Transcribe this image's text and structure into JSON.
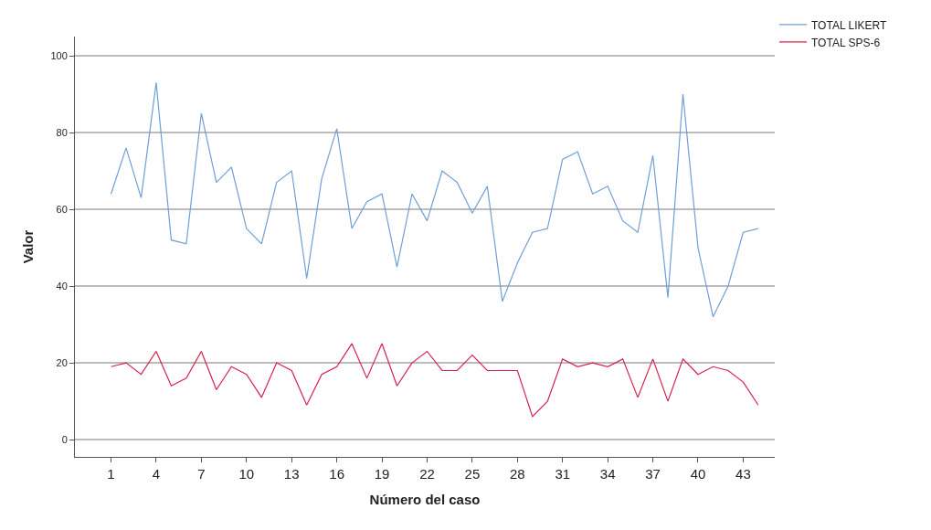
{
  "chart_data": {
    "type": "line",
    "xlabel": "Número del caso",
    "ylabel": "Valor",
    "x": [
      1,
      2,
      3,
      4,
      5,
      6,
      7,
      8,
      9,
      10,
      11,
      12,
      13,
      14,
      15,
      16,
      17,
      18,
      19,
      20,
      21,
      22,
      23,
      24,
      25,
      26,
      27,
      28,
      29,
      30,
      31,
      32,
      33,
      34,
      35,
      36,
      37,
      38,
      39,
      40,
      41,
      42,
      43,
      44
    ],
    "series": [
      {
        "name": "TOTAL LIKERT",
        "color": "#6f9fd8",
        "values": [
          64,
          76,
          63,
          93,
          52,
          51,
          85,
          67,
          71,
          55,
          51,
          67,
          70,
          42,
          68,
          81,
          55,
          62,
          64,
          45,
          64,
          57,
          70,
          67,
          59,
          66,
          36,
          46,
          54,
          55,
          73,
          75,
          64,
          66,
          57,
          54,
          74,
          37,
          90,
          50,
          32,
          40,
          54,
          55
        ]
      },
      {
        "name": "TOTAL SPS-6",
        "color": "#d8204c",
        "values": [
          19,
          20,
          17,
          23,
          14,
          16,
          23,
          13,
          19,
          17,
          11,
          20,
          18,
          9,
          17,
          19,
          25,
          16,
          25,
          14,
          20,
          23,
          18,
          18,
          22,
          18,
          18,
          18,
          6,
          10,
          21,
          19,
          20,
          19,
          21,
          11,
          21,
          10,
          21,
          17,
          19,
          18,
          15,
          9
        ]
      }
    ],
    "xlim": [
      -1.4,
      45.1
    ],
    "xticks": [
      1,
      4,
      7,
      10,
      13,
      16,
      19,
      22,
      25,
      28,
      31,
      34,
      37,
      40,
      43
    ],
    "ylim": [
      -4.5,
      105
    ],
    "yticks": [
      0,
      20,
      40,
      60,
      80,
      100
    ],
    "grid": "y",
    "legend": "top right",
    "line_style": "solid",
    "marker": "none"
  }
}
